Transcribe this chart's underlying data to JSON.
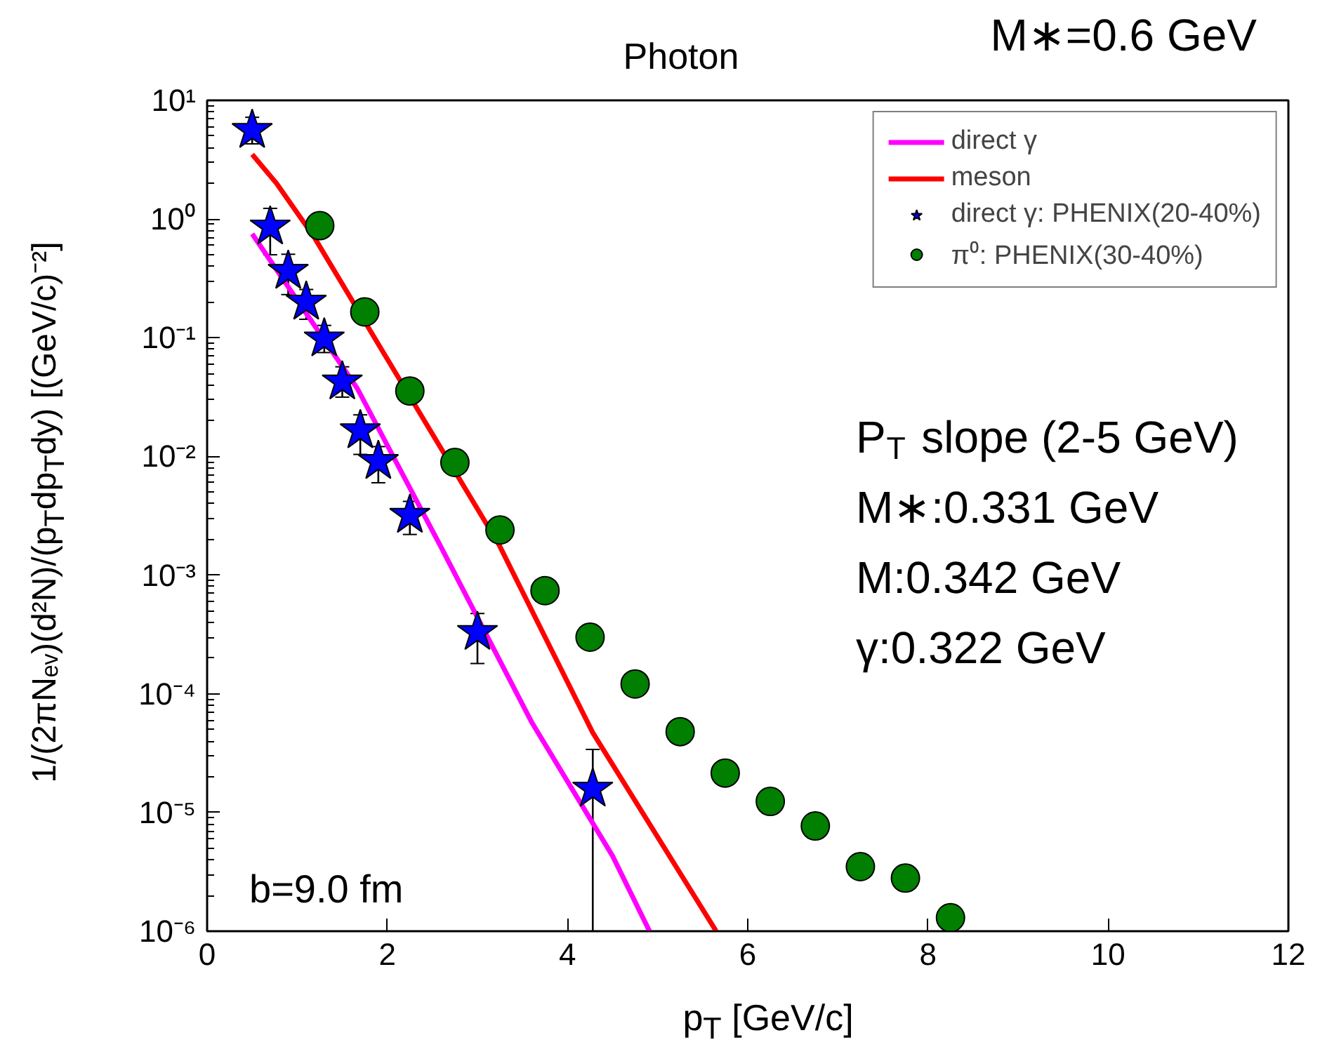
{
  "chart_data": {
    "type": "scatter",
    "title": "Photon",
    "xlabel": "p$_{T}$ [GeV/c]",
    "ylabel": "1/(2πNₑᵥ)(d²N)/(p$_{T}$dp$_{T}$dy)   [(GeV/c)⁻²]",
    "log": "y",
    "xlim": [
      0,
      12
    ],
    "ylim": [
      1e-06,
      10
    ],
    "xticks": [
      0,
      2,
      4,
      6,
      8,
      10,
      12
    ],
    "yticks": [
      {
        "value": 1e-06,
        "label": "10⁻⁶"
      },
      {
        "value": 1e-05,
        "label": "10⁻⁵"
      },
      {
        "value": 0.0001,
        "label": "10⁻⁴"
      },
      {
        "value": 0.001,
        "label": "10⁻³"
      },
      {
        "value": 0.01,
        "label": "10⁻²"
      },
      {
        "value": 0.1,
        "label": "10⁻¹"
      },
      {
        "value": 1,
        "label": "10⁰"
      },
      {
        "value": 10,
        "label": "10¹"
      }
    ],
    "grid": false,
    "legend": "top right",
    "annotations": [
      "M∗=0.6 GeV",
      "P$_{T}$ slope (2-5 GeV)",
      "M∗:0.331 GeV",
      "M:0.342 GeV",
      "γ:0.322 GeV",
      "b=9.0 fm"
    ],
    "series": [
      {
        "name": "direct γ",
        "type": "line",
        "color": "#ff00ff",
        "line_style": "solid",
        "x": [
          0.5,
          1.67,
          2.6,
          3.6,
          4.5,
          4.91
        ],
        "values": [
          0.75,
          0.037,
          0.0017,
          5.8e-05,
          4.3e-06,
          1e-06
        ]
      },
      {
        "name": "meson",
        "type": "line",
        "color": "#ff0000",
        "line_style": "solid",
        "x": [
          0.5,
          0.77,
          1.19,
          2.0,
          3.24,
          4.28,
          5.65
        ],
        "values": [
          3.5,
          2.0,
          0.7,
          0.066,
          0.0018,
          4.7e-05,
          1e-06
        ]
      },
      {
        "name": "direct γ: PHENIX(20-40%)",
        "marker": "star",
        "color": "#0000ff",
        "x": [
          0.5,
          0.7,
          0.9,
          1.1,
          1.3,
          1.5,
          1.7,
          1.9,
          2.25,
          3.0,
          4.28
        ],
        "values": [
          5.6,
          0.86,
          0.364,
          0.2,
          0.098,
          0.0426,
          0.0165,
          0.0091,
          0.0032,
          0.00033,
          1.58e-05
        ],
        "errors": [
          [
            4.3,
            7.2
          ],
          [
            0.5,
            1.23
          ],
          [
            0.231,
            0.505
          ],
          [
            0.143,
            0.255
          ],
          [
            0.075,
            0.127
          ],
          [
            0.0316,
            0.0569
          ],
          [
            0.0104,
            0.0224
          ],
          [
            0.006,
            0.0121
          ],
          [
            0.0022,
            0.00418
          ],
          [
            0.00018,
            0.000475
          ],
          [
            1e-06,
            3.4e-05
          ]
        ]
      },
      {
        "name": "π⁰: PHENIX(30-40%)",
        "marker": "circle",
        "color": "#007f00",
        "x": [
          1.25,
          1.75,
          2.25,
          2.75,
          3.25,
          3.75,
          4.25,
          4.75,
          5.25,
          5.75,
          6.25,
          6.75,
          7.25,
          7.75,
          8.25
        ],
        "values": [
          0.88,
          0.165,
          0.0356,
          0.0089,
          0.0024,
          0.00074,
          0.0003,
          0.000121,
          4.8e-05,
          2.15e-05,
          1.24e-05,
          7.7e-06,
          3.5e-06,
          2.8e-06,
          1.3e-06
        ]
      }
    ]
  }
}
